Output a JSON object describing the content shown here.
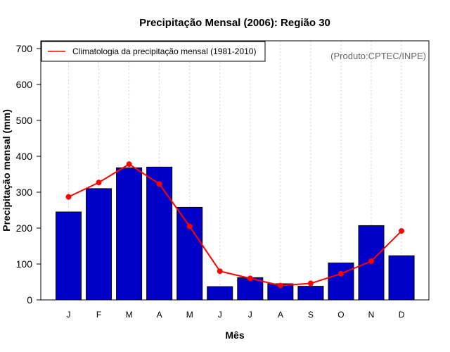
{
  "chart_data": {
    "type": "bar",
    "title": "Precipitação Mensal (2006): Região 30",
    "xlabel": "Mês",
    "ylabel": "Precipitação mensal (mm)",
    "ylim": [
      0,
      700
    ],
    "yticks": [
      0,
      100,
      200,
      300,
      400,
      500,
      600,
      700
    ],
    "categories": [
      "J",
      "F",
      "M",
      "A",
      "M",
      "J",
      "J",
      "A",
      "S",
      "O",
      "N",
      "D"
    ],
    "series": [
      {
        "name": "Precipitação mensal 2006",
        "type": "bar",
        "color": "#0000c8",
        "values": [
          245,
          310,
          368,
          370,
          258,
          37,
          62,
          45,
          38,
          103,
          207,
          123
        ]
      },
      {
        "name": "Climatologia da precipitação mensal (1981-2010)",
        "type": "line",
        "color": "#ff0000",
        "values": [
          287,
          327,
          378,
          323,
          205,
          80,
          60,
          40,
          46,
          73,
          108,
          192
        ]
      }
    ],
    "legend": {
      "position": "top-left",
      "entries": [
        "Climatologia da precipitação mensal (1981-2010)"
      ]
    },
    "source_note": "(Produto:CPTEC/INPE)",
    "grid": "vertical dotted"
  }
}
